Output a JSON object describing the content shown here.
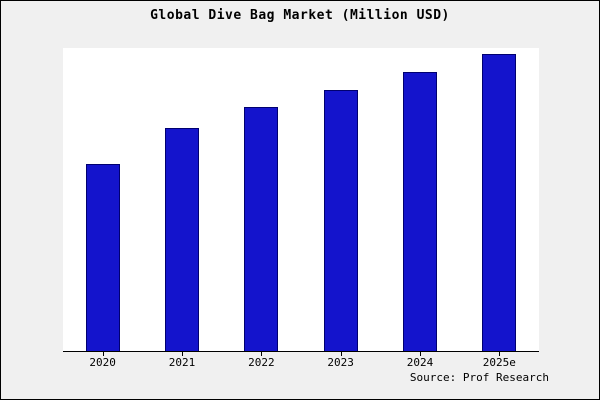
{
  "chart_data": {
    "type": "bar",
    "title": "Global Dive Bag Market (Million USD)",
    "categories": [
      "2020",
      "2021",
      "2022",
      "2023",
      "2024",
      "2025e"
    ],
    "values": [
      63,
      75,
      82,
      88,
      94,
      100
    ],
    "xlabel": "",
    "ylabel": "",
    "ylim": [
      0,
      102
    ],
    "grid": false,
    "legend": false,
    "bar_color": "#1414cc",
    "source": "Source: Prof Research"
  }
}
